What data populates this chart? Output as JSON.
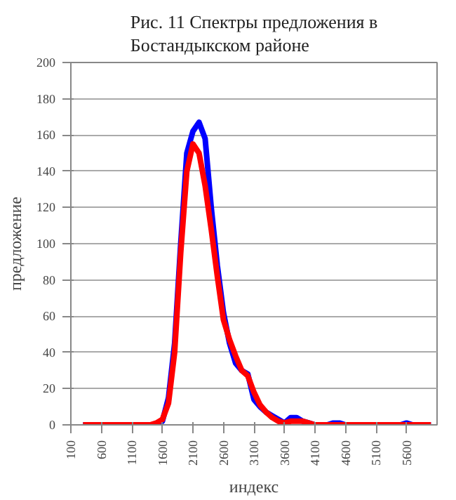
{
  "chart_data": {
    "type": "line",
    "title": "Рис. 11 Спектры предложения в\nБостандыкском районе",
    "xlabel": "индекс",
    "ylabel": "предложение",
    "series": [
      {
        "color": "#0000ff",
        "x": [
          300,
          1500,
          1600,
          1700,
          1800,
          1900,
          2000,
          2100,
          2200,
          2300,
          2400,
          2500,
          2600,
          2700,
          2800,
          2900,
          3000,
          3100,
          3200,
          3300,
          3400,
          3500,
          3600,
          3700,
          3800,
          3900,
          4000,
          4100,
          4300,
          4400,
          4500,
          4600,
          5500,
          5600,
          5700,
          6000
        ],
        "values": [
          0,
          0,
          2,
          15,
          45,
          100,
          150,
          162,
          167,
          158,
          120,
          88,
          62,
          45,
          34,
          30,
          28,
          14,
          10,
          7,
          5,
          3,
          1,
          4,
          4,
          2,
          1,
          0,
          0,
          1,
          1,
          0,
          0,
          1,
          0,
          0
        ]
      },
      {
        "color": "#ff0000",
        "x": [
          300,
          1400,
          1500,
          1600,
          1700,
          1800,
          1900,
          2000,
          2100,
          2200,
          2300,
          2400,
          2500,
          2600,
          2700,
          2800,
          2900,
          3000,
          3100,
          3200,
          3300,
          3400,
          3500,
          3600,
          3700,
          3800,
          3900,
          4000,
          4100,
          6000
        ],
        "values": [
          0,
          0,
          1,
          3,
          12,
          40,
          95,
          140,
          155,
          150,
          132,
          108,
          82,
          58,
          47,
          38,
          30,
          27,
          18,
          11,
          7,
          4,
          2,
          1,
          2,
          2,
          2,
          1,
          0,
          0
        ]
      }
    ],
    "xlim": [
      100,
      6100
    ],
    "xticks": [
      100,
      600,
      1100,
      1600,
      2100,
      2600,
      3100,
      3600,
      4100,
      4600,
      5100,
      5600
    ],
    "ylim": [
      0,
      200
    ],
    "yticks": [
      0,
      20,
      40,
      60,
      80,
      100,
      120,
      140,
      160,
      180,
      200
    ],
    "grid": "y",
    "marker": "none",
    "line_style": "solid"
  }
}
